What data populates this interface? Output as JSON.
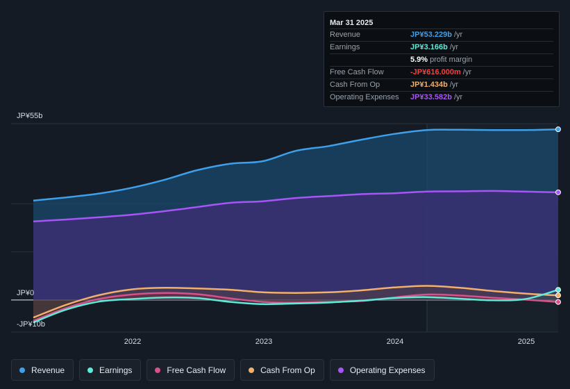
{
  "tooltip": {
    "date": "Mar 31 2025",
    "rows": [
      {
        "label": "Revenue",
        "value": "JP¥53.229b",
        "unit": "/yr",
        "color": "#3ea0ea"
      },
      {
        "label": "Earnings",
        "value": "JP¥3.166b",
        "unit": "/yr",
        "color": "#5eead8"
      },
      {
        "label": "",
        "value": "5.9%",
        "unit": "profit margin",
        "color": "#ffffff"
      },
      {
        "label": "Free Cash Flow",
        "value": "-JP¥616.000m",
        "unit": "/yr",
        "color": "#ef4444"
      },
      {
        "label": "Cash From Op",
        "value": "JP¥1.434b",
        "unit": "/yr",
        "color": "#f2b06a"
      },
      {
        "label": "Operating Expenses",
        "value": "JP¥33.582b",
        "unit": "/yr",
        "color": "#a855f7"
      }
    ]
  },
  "legend": [
    {
      "label": "Revenue",
      "color": "#3ea0ea"
    },
    {
      "label": "Earnings",
      "color": "#5eead8"
    },
    {
      "label": "Free Cash Flow",
      "color": "#d6528a"
    },
    {
      "label": "Cash From Op",
      "color": "#f2b06a"
    },
    {
      "label": "Operating Expenses",
      "color": "#a855f7"
    }
  ],
  "chart_data": {
    "type": "area",
    "title": "",
    "xlabel": "",
    "ylabel": "",
    "y_tick_labels": [
      "JP¥55b",
      "JP¥0",
      "-JP¥10b"
    ],
    "x_tick_labels": [
      "2022",
      "2023",
      "2024",
      "2025"
    ],
    "ylim": [
      -10,
      55
    ],
    "x_range": [
      2021.25,
      2025.25
    ],
    "forecast_start": 2024.25,
    "x": [
      2021.25,
      2021.5,
      2021.75,
      2022.0,
      2022.25,
      2022.5,
      2022.75,
      2023.0,
      2023.25,
      2023.5,
      2023.75,
      2024.0,
      2024.25,
      2024.5,
      2024.75,
      2025.0,
      2025.25
    ],
    "series": [
      {
        "name": "Revenue",
        "color": "#3ea0ea",
        "values": [
          31.0,
          32.0,
          33.2,
          35.0,
          37.5,
          40.5,
          42.5,
          43.3,
          46.5,
          48.0,
          50.0,
          51.8,
          53.0,
          53.1,
          53.0,
          53.0,
          53.229
        ]
      },
      {
        "name": "Operating Expenses",
        "color": "#a855f7",
        "values": [
          24.5,
          25.1,
          25.8,
          26.6,
          27.7,
          29.0,
          30.3,
          30.8,
          31.8,
          32.4,
          33.0,
          33.3,
          33.8,
          33.9,
          34.0,
          33.8,
          33.582
        ]
      },
      {
        "name": "Cash From Op",
        "color": "#f2b06a",
        "values": [
          -5.5,
          -1.5,
          1.5,
          3.3,
          3.8,
          3.6,
          3.2,
          2.4,
          2.2,
          2.4,
          3.0,
          3.9,
          4.4,
          3.8,
          2.8,
          2.0,
          1.434
        ]
      },
      {
        "name": "Free Cash Flow",
        "color": "#d6528a",
        "values": [
          -6.5,
          -2.5,
          0.3,
          1.7,
          2.2,
          1.8,
          0.5,
          -0.6,
          -0.8,
          -0.6,
          -0.3,
          0.8,
          1.7,
          1.4,
          0.7,
          0.1,
          -0.616
        ]
      },
      {
        "name": "Earnings",
        "color": "#5eead8",
        "values": [
          -7.0,
          -3.0,
          -0.5,
          0.3,
          0.8,
          0.6,
          -0.6,
          -1.3,
          -1.1,
          -0.8,
          -0.2,
          0.6,
          0.9,
          0.4,
          -0.1,
          0.3,
          3.166
        ]
      }
    ]
  }
}
